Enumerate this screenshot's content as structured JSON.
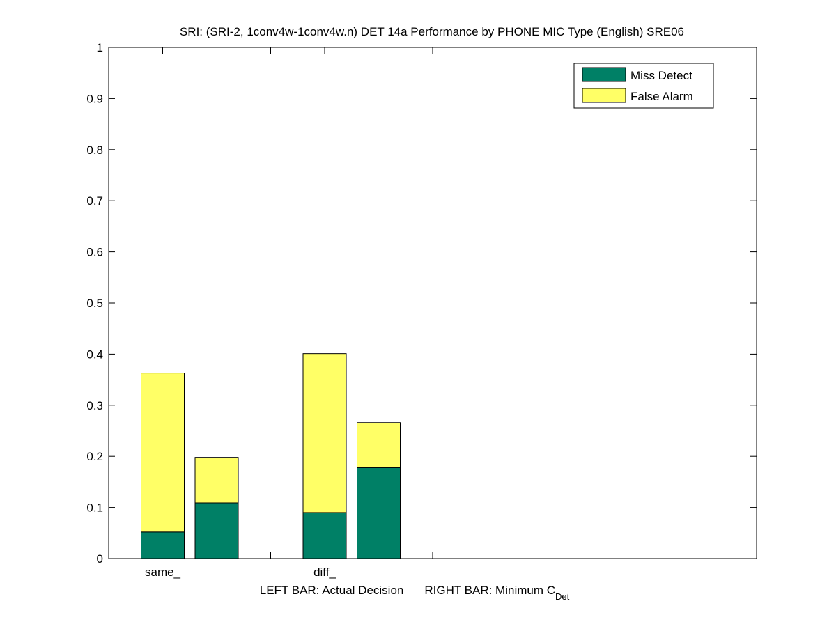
{
  "chart_data": {
    "type": "bar",
    "stacked": true,
    "title": "SRI: (SRI-2, 1conv4w-1conv4w.n) DET 14a Performance by PHONE MIC Type (English) SRE06",
    "xlabel_parts": {
      "left": "LEFT BAR: Actual Decision",
      "right": "RIGHT BAR: Minimum C",
      "subscript": "Det"
    },
    "ylabel": "",
    "ylim": [
      0,
      1
    ],
    "yticks": [
      "0",
      "0.1",
      "0.2",
      "0.3",
      "0.4",
      "0.5",
      "0.6",
      "0.7",
      "0.8",
      "0.9",
      "1"
    ],
    "categories": [
      "same_",
      "diff_"
    ],
    "bars_per_category": [
      "Actual Decision",
      "Minimum C_Det"
    ],
    "series": [
      {
        "name": "Miss Detect",
        "color": "#008066",
        "values": [
          [
            0.052,
            0.109
          ],
          [
            0.09,
            0.178
          ]
        ]
      },
      {
        "name": "False Alarm",
        "color": "#ffff66",
        "values": [
          [
            0.311,
            0.089
          ],
          [
            0.311,
            0.088
          ]
        ]
      }
    ],
    "totals": [
      [
        0.363,
        0.198
      ],
      [
        0.401,
        0.266
      ]
    ],
    "legend_position": "top-right",
    "grid": false
  }
}
